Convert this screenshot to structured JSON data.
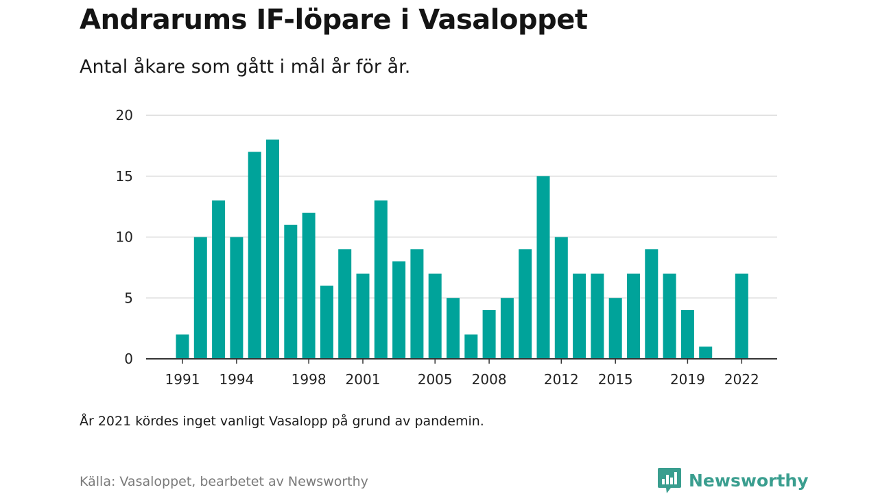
{
  "header": {
    "title": "Andrarums IF-löpare i Vasaloppet",
    "subtitle": "Antal åkare som gått i mål år för år."
  },
  "footer": {
    "note": "År 2021 kördes inget vanligt Vasalopp på grund av pandemin.",
    "source": "Källa: Vasaloppet, bearbetet av Newsworthy",
    "brand": "Newsworthy"
  },
  "colors": {
    "bar": "#00a39a",
    "grid": "#d9d9d9",
    "axis": "#333333",
    "brand": "#3a9e8f"
  },
  "chart_data": {
    "type": "bar",
    "x": [
      1991,
      1992,
      1993,
      1994,
      1995,
      1996,
      1997,
      1998,
      1999,
      2000,
      2001,
      2002,
      2003,
      2004,
      2005,
      2006,
      2007,
      2008,
      2009,
      2010,
      2011,
      2012,
      2013,
      2014,
      2015,
      2016,
      2017,
      2018,
      2019,
      2020,
      2021,
      2022
    ],
    "values": [
      2,
      10,
      13,
      10,
      17,
      18,
      11,
      12,
      6,
      9,
      7,
      13,
      8,
      9,
      7,
      5,
      2,
      4,
      5,
      9,
      15,
      10,
      7,
      7,
      5,
      7,
      9,
      7,
      4,
      1,
      0,
      7
    ],
    "x_tick_labels": [
      1991,
      1994,
      1998,
      2001,
      2005,
      2008,
      2012,
      2015,
      2019,
      2022
    ],
    "y_ticks": [
      0,
      5,
      10,
      15,
      20
    ],
    "ylim": [
      0,
      20
    ],
    "grid": true,
    "legend": "none"
  }
}
